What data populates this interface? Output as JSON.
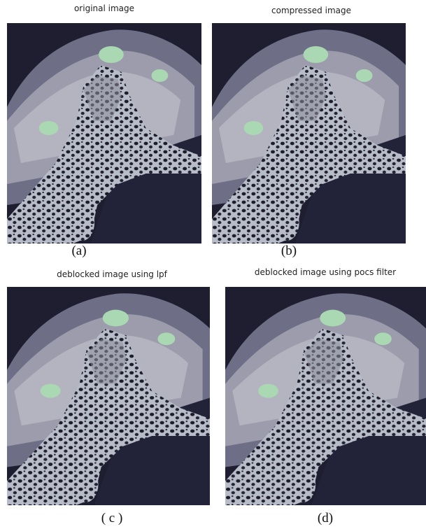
{
  "panels": [
    {
      "title": "original image",
      "caption": "(a)"
    },
    {
      "title": "compressed image",
      "caption": "(b)"
    },
    {
      "title": "deblocked image using lpf",
      "caption": "( c )"
    },
    {
      "title": "deblocked image using pocs filter",
      "caption": "(d)"
    }
  ]
}
